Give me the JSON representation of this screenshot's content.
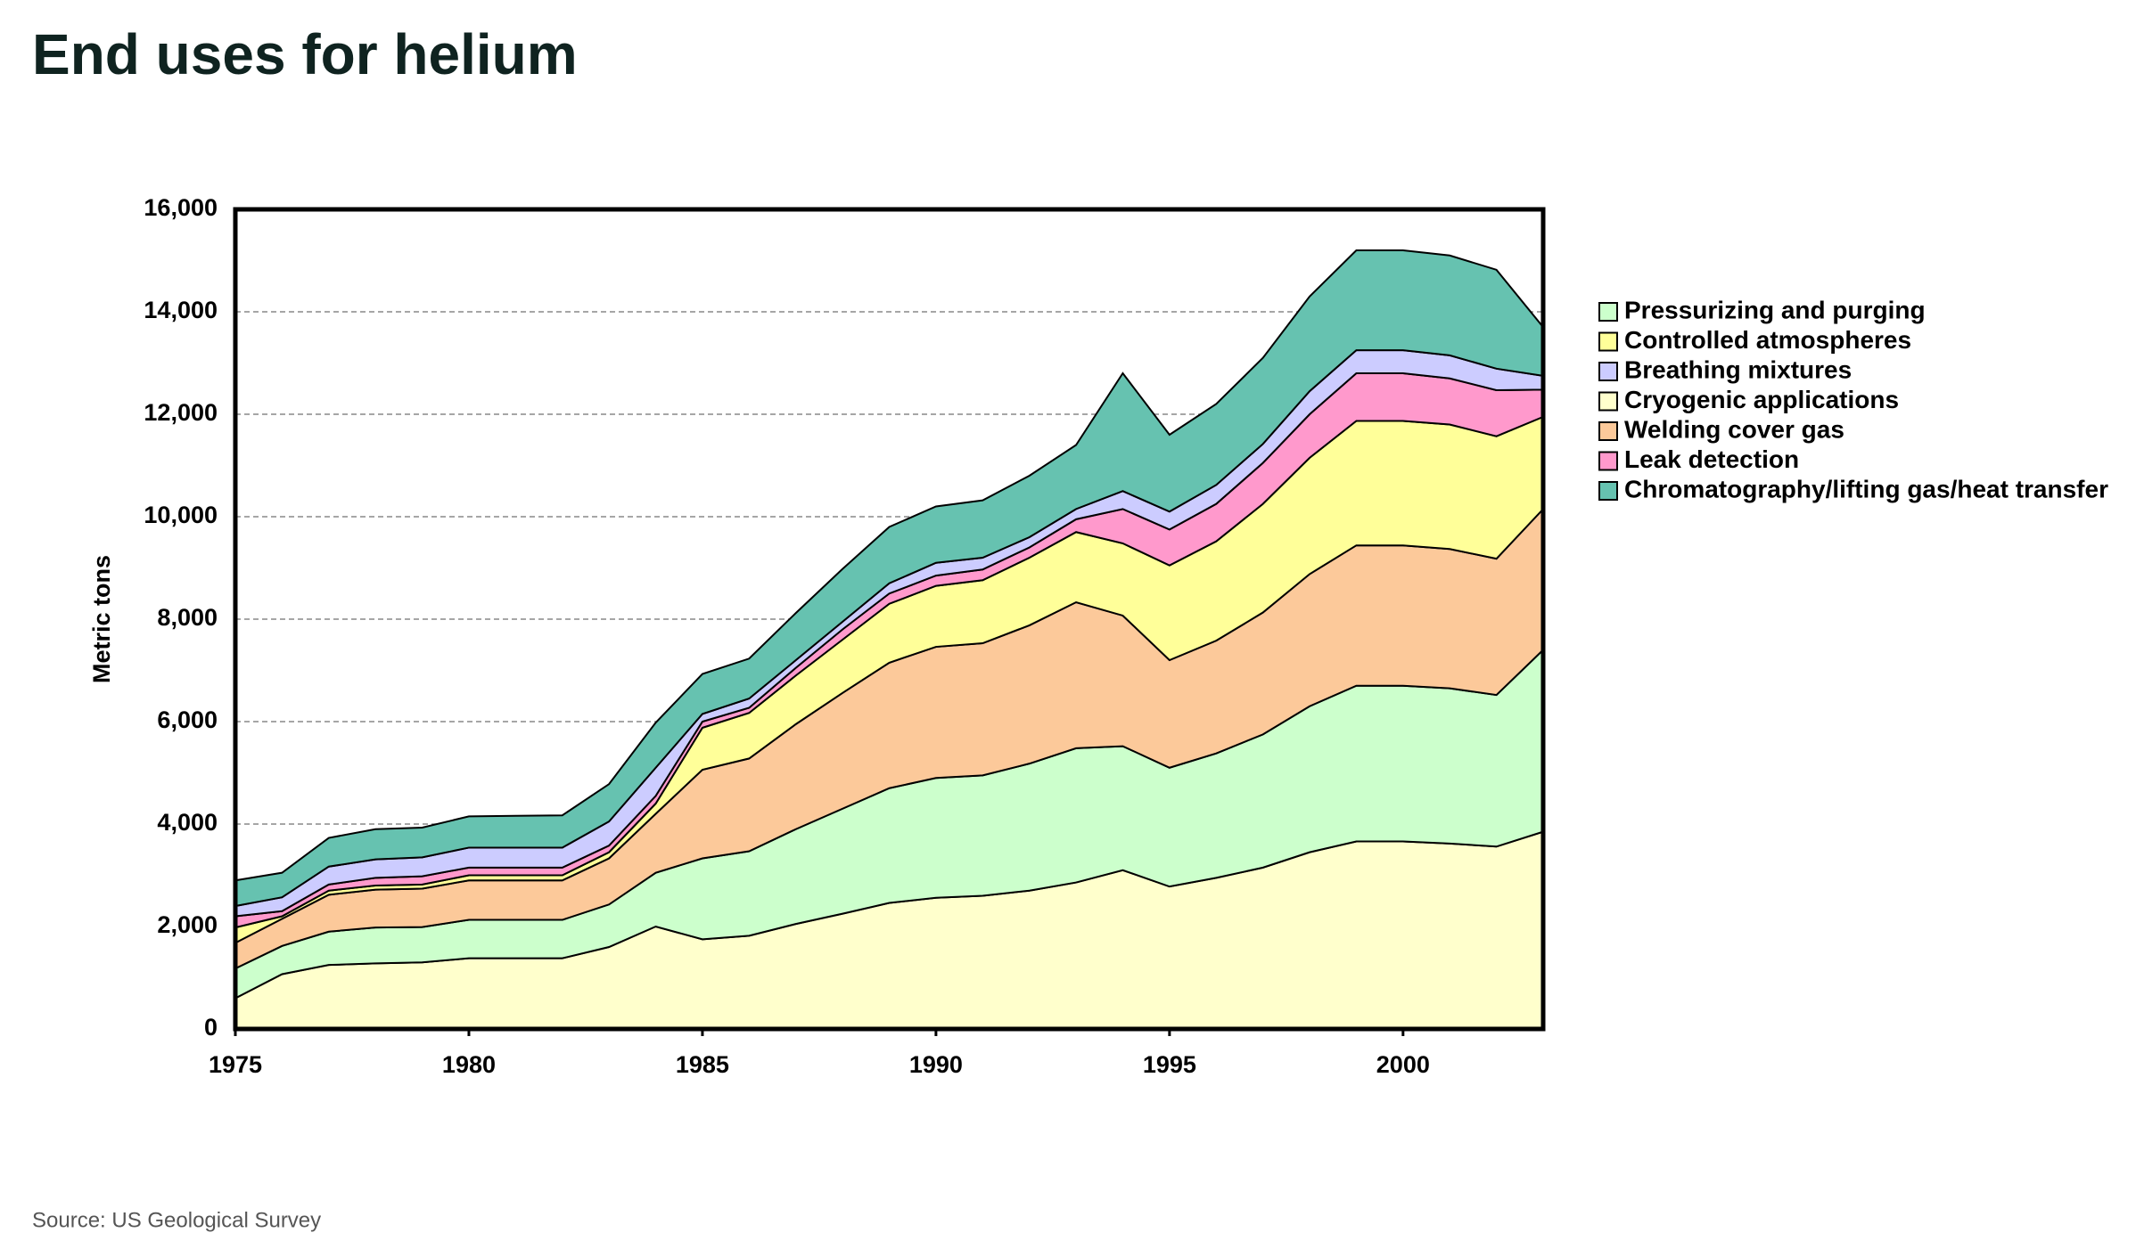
{
  "title": "End uses for helium",
  "source": "Source: US Geological Survey",
  "chart_data": {
    "type": "stacked-area",
    "ylabel": "Metric tons",
    "x": [
      1975,
      1976,
      1977,
      1978,
      1979,
      1980,
      1981,
      1982,
      1983,
      1984,
      1985,
      1986,
      1987,
      1988,
      1989,
      1990,
      1991,
      1992,
      1993,
      1994,
      1995,
      1996,
      1997,
      1998,
      1999,
      2000,
      2001,
      2002,
      2003
    ],
    "xlim": [
      1975,
      2003
    ],
    "xticks": [
      1975,
      1980,
      1985,
      1990,
      1995,
      2000
    ],
    "ylim": [
      0,
      16000
    ],
    "yticks": [
      0,
      {
        "value": 2000,
        "label": "2,000"
      },
      {
        "value": 4000,
        "label": "4,000"
      },
      {
        "value": 6000,
        "label": "6,000"
      },
      {
        "value": 8000,
        "label": "8,000"
      },
      {
        "value": 10000,
        "label": "10,000"
      },
      {
        "value": 12000,
        "label": "12,000"
      },
      {
        "value": 14000,
        "label": "14,000"
      },
      {
        "value": 16000,
        "label": "16,000"
      }
    ],
    "grid": true,
    "series": [
      {
        "name": "Pressurizing and purging",
        "color": "#ccffcc",
        "values": [
          580,
          550,
          650,
          700,
          690,
          750,
          750,
          750,
          830,
          1050,
          1580,
          1650,
          1850,
          2050,
          2240,
          2340,
          2350,
          2480,
          2620,
          2420,
          2320,
          2430,
          2600,
          2850,
          3040,
          3040,
          3030,
          2960,
          3550
        ]
      },
      {
        "name": "Controlled atmospheres",
        "color": "#ffff99",
        "values": [
          300,
          50,
          80,
          80,
          80,
          100,
          100,
          100,
          120,
          200,
          820,
          890,
          950,
          1040,
          1150,
          1190,
          1230,
          1320,
          1370,
          1410,
          1850,
          1940,
          2120,
          2270,
          2430,
          2430,
          2430,
          2390,
          1800
        ]
      },
      {
        "name": "Breathing mixtures",
        "color": "#ccccff",
        "values": [
          200,
          270,
          350,
          360,
          370,
          390,
          390,
          390,
          470,
          550,
          150,
          180,
          150,
          150,
          200,
          250,
          230,
          200,
          200,
          350,
          350,
          370,
          370,
          450,
          450,
          450,
          450,
          420,
          270
        ]
      },
      {
        "name": "Cryogenic applications",
        "color": "#ffffcc",
        "values": [
          600,
          1070,
          1250,
          1280,
          1300,
          1380,
          1380,
          1380,
          1600,
          2000,
          1750,
          1820,
          2050,
          2250,
          2460,
          2560,
          2600,
          2700,
          2860,
          3100,
          2780,
          2950,
          3150,
          3450,
          3660,
          3660,
          3620,
          3560,
          3850
        ]
      },
      {
        "name": "Welding cover gas",
        "color": "#fcc99a",
        "values": [
          500,
          530,
          720,
          740,
          750,
          770,
          770,
          770,
          900,
          1150,
          1730,
          1810,
          2050,
          2260,
          2450,
          2560,
          2580,
          2700,
          2850,
          2550,
          2100,
          2200,
          2380,
          2580,
          2740,
          2740,
          2720,
          2660,
          2750
        ]
      },
      {
        "name": "Leak detection",
        "color": "#ff99cc",
        "values": [
          220,
          100,
          120,
          150,
          160,
          150,
          150,
          150,
          130,
          150,
          120,
          100,
          150,
          200,
          200,
          200,
          210,
          200,
          250,
          670,
          700,
          730,
          800,
          850,
          930,
          930,
          900,
          900,
          530
        ]
      },
      {
        "name": "Chromatography/lifting gas/heat transfer",
        "color": "#66c2b0",
        "values": [
          500,
          480,
          560,
          590,
          580,
          610,
          620,
          630,
          730,
          880,
          780,
          780,
          920,
          1030,
          1100,
          1100,
          1120,
          1200,
          1250,
          2300,
          1500,
          1580,
          1680,
          1850,
          1950,
          1950,
          1950,
          1930,
          950
        ]
      }
    ]
  }
}
